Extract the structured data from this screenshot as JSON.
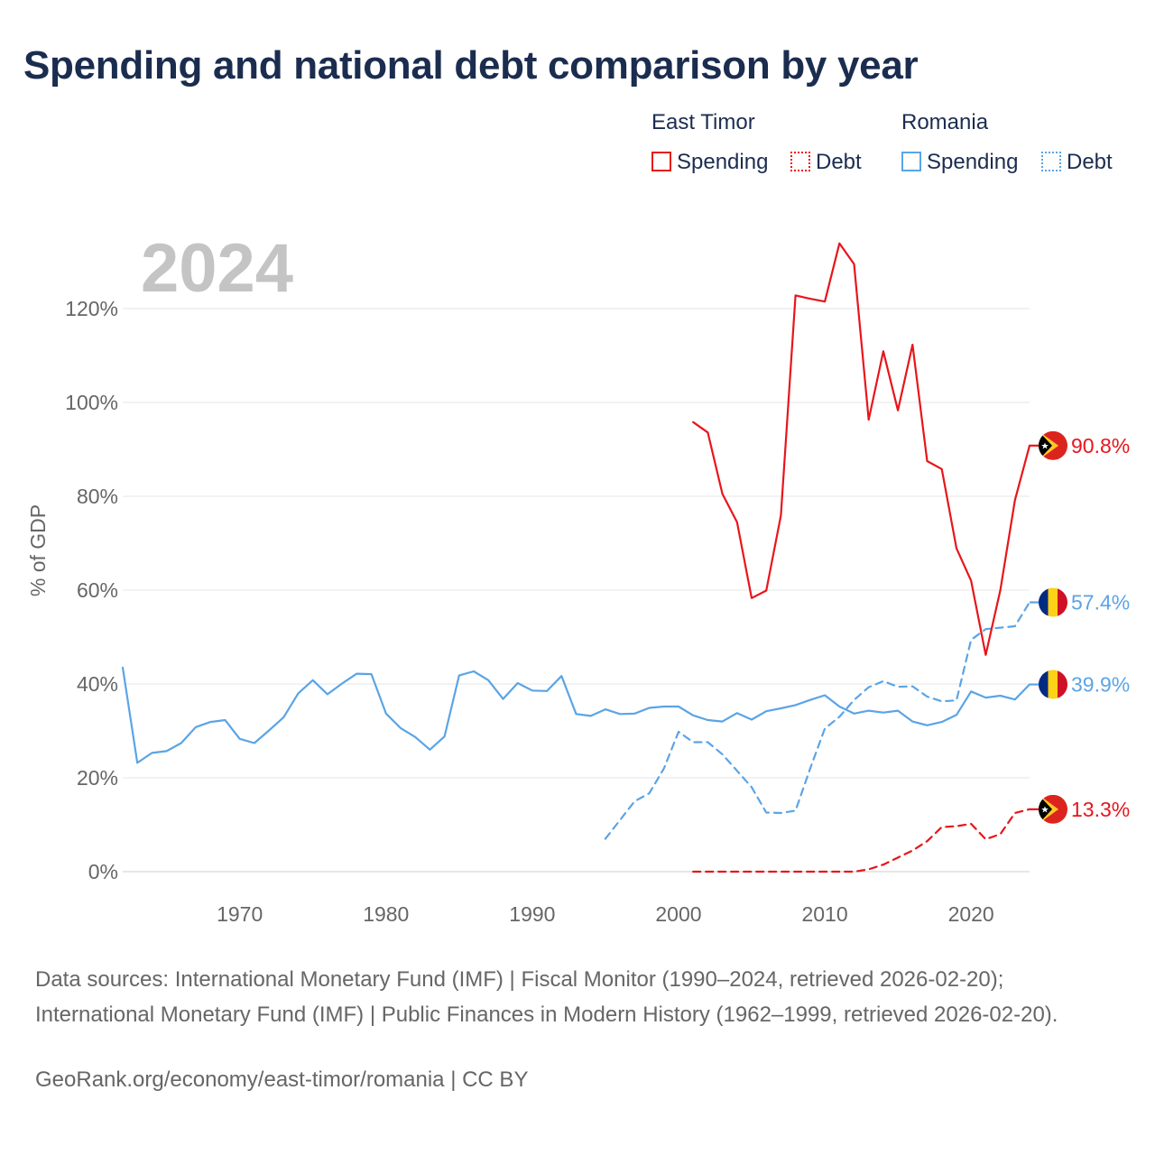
{
  "title": "Spending and national debt comparison by year",
  "legend": {
    "groups": [
      {
        "name": "East Timor",
        "color": "#e8151b",
        "items": [
          {
            "label": "Spending",
            "style": "solid"
          },
          {
            "label": "Debt",
            "style": "dotted"
          }
        ]
      },
      {
        "name": "Romania",
        "color": "#5ba4e5",
        "items": [
          {
            "label": "Spending",
            "style": "solid"
          },
          {
            "label": "Debt",
            "style": "dotted"
          }
        ]
      }
    ]
  },
  "year_label": "2024",
  "sources_text": "Data sources: International Monetary Fund (IMF) | Fiscal Monitor (1990–2024, retrieved 2026-02-20); International Monetary Fund (IMF) | Public Finances in Modern History (1962–1999, retrieved 2026-02-20).",
  "credit_text": "GeoRank.org/economy/east-timor/romania | CC BY",
  "chart_data": {
    "type": "line",
    "ylabel": "% of GDP",
    "xlabel": "",
    "xlim": [
      1962,
      2024
    ],
    "ylim": [
      0,
      130
    ],
    "x_ticks": [
      1970,
      1980,
      1990,
      2000,
      2010,
      2020
    ],
    "y_ticks": [
      0,
      20,
      40,
      60,
      80,
      100,
      120
    ],
    "y_tick_labels": [
      "0%",
      "20%",
      "40%",
      "60%",
      "80%",
      "100%",
      "120%"
    ],
    "grid": true,
    "series": [
      {
        "name": "Romania Spending",
        "country": "Romania",
        "metric": "Spending",
        "color": "#5ba4e5",
        "dash": "solid",
        "end_label": "39.9%",
        "flag": "romania-flag",
        "x": [
          1962,
          1963,
          1964,
          1965,
          1966,
          1967,
          1968,
          1969,
          1970,
          1971,
          1972,
          1973,
          1974,
          1975,
          1976,
          1977,
          1978,
          1979,
          1980,
          1981,
          1982,
          1983,
          1984,
          1985,
          1986,
          1987,
          1988,
          1989,
          1990,
          1991,
          1992,
          1993,
          1994,
          1995,
          1996,
          1997,
          1998,
          1999,
          2000,
          2001,
          2002,
          2003,
          2004,
          2005,
          2006,
          2007,
          2008,
          2009,
          2010,
          2011,
          2012,
          2013,
          2014,
          2015,
          2016,
          2017,
          2018,
          2019,
          2020,
          2021,
          2022,
          2023,
          2024
        ],
        "y": [
          43.5,
          23.2,
          25.3,
          25.7,
          27.4,
          30.8,
          31.9,
          32.3,
          28.3,
          27.4,
          30.1,
          32.9,
          38.0,
          40.8,
          37.8,
          40.1,
          42.2,
          42.1,
          33.7,
          30.6,
          28.7,
          26.0,
          28.8,
          41.8,
          42.7,
          40.8,
          36.8,
          40.2,
          38.6,
          38.5,
          41.7,
          33.6,
          33.2,
          34.6,
          33.6,
          33.7,
          34.9,
          35.2,
          35.2,
          33.3,
          32.3,
          32.0,
          33.8,
          32.4,
          34.2,
          34.8,
          35.5,
          36.6,
          37.6,
          35.2,
          33.7,
          34.3,
          33.9,
          34.3,
          32.0,
          31.2,
          31.9,
          33.4,
          38.4,
          37.1,
          37.5,
          36.7,
          39.9
        ]
      },
      {
        "name": "Romania Debt",
        "country": "Romania",
        "metric": "Debt",
        "color": "#5ba4e5",
        "dash": "dashed",
        "end_label": "57.4%",
        "flag": "romania-flag",
        "x": [
          1995,
          1996,
          1997,
          1998,
          1999,
          2000,
          2001,
          2002,
          2003,
          2004,
          2005,
          2006,
          2007,
          2008,
          2009,
          2010,
          2011,
          2012,
          2013,
          2014,
          2015,
          2016,
          2017,
          2018,
          2019,
          2020,
          2021,
          2022,
          2023,
          2024
        ],
        "y": [
          7.0,
          11.0,
          15.0,
          16.7,
          22.0,
          29.8,
          27.6,
          27.6,
          25.0,
          21.5,
          18.0,
          12.6,
          12.5,
          13.0,
          22.0,
          30.5,
          33.0,
          36.6,
          39.3,
          40.6,
          39.4,
          39.5,
          37.3,
          36.3,
          36.5,
          49.4,
          51.7,
          52.0,
          52.3,
          57.4
        ]
      },
      {
        "name": "East Timor Spending",
        "country": "East Timor",
        "metric": "Spending",
        "color": "#e8151b",
        "dash": "solid",
        "end_label": "90.8%",
        "flag": "east-timor-flag",
        "x": [
          2001,
          2002,
          2003,
          2004,
          2005,
          2006,
          2007,
          2008,
          2009,
          2010,
          2011,
          2012,
          2013,
          2014,
          2015,
          2016,
          2017,
          2018,
          2019,
          2020,
          2021,
          2022,
          2023,
          2024
        ],
        "y": [
          95.8,
          93.6,
          80.5,
          74.5,
          58.3,
          59.9,
          75.9,
          122.8,
          122.1,
          121.5,
          133.9,
          129.5,
          96.3,
          110.9,
          98.3,
          112.3,
          87.5,
          85.8,
          68.9,
          62.0,
          46.2,
          60.0,
          79.2,
          90.8
        ]
      },
      {
        "name": "East Timor Debt",
        "country": "East Timor",
        "metric": "Debt",
        "color": "#e8151b",
        "dash": "dashed",
        "end_label": "13.3%",
        "flag": "east-timor-flag",
        "x": [
          2001,
          2002,
          2003,
          2004,
          2005,
          2006,
          2007,
          2008,
          2009,
          2010,
          2011,
          2012,
          2013,
          2014,
          2015,
          2016,
          2017,
          2018,
          2019,
          2020,
          2021,
          2022,
          2023,
          2024
        ],
        "y": [
          0.0,
          0.0,
          0.0,
          0.0,
          0.0,
          0.0,
          0.0,
          0.0,
          0.0,
          0.0,
          0.0,
          0.0,
          0.5,
          1.5,
          3.0,
          4.5,
          6.5,
          9.5,
          9.7,
          10.2,
          6.9,
          8.0,
          12.5,
          13.3
        ]
      }
    ]
  }
}
